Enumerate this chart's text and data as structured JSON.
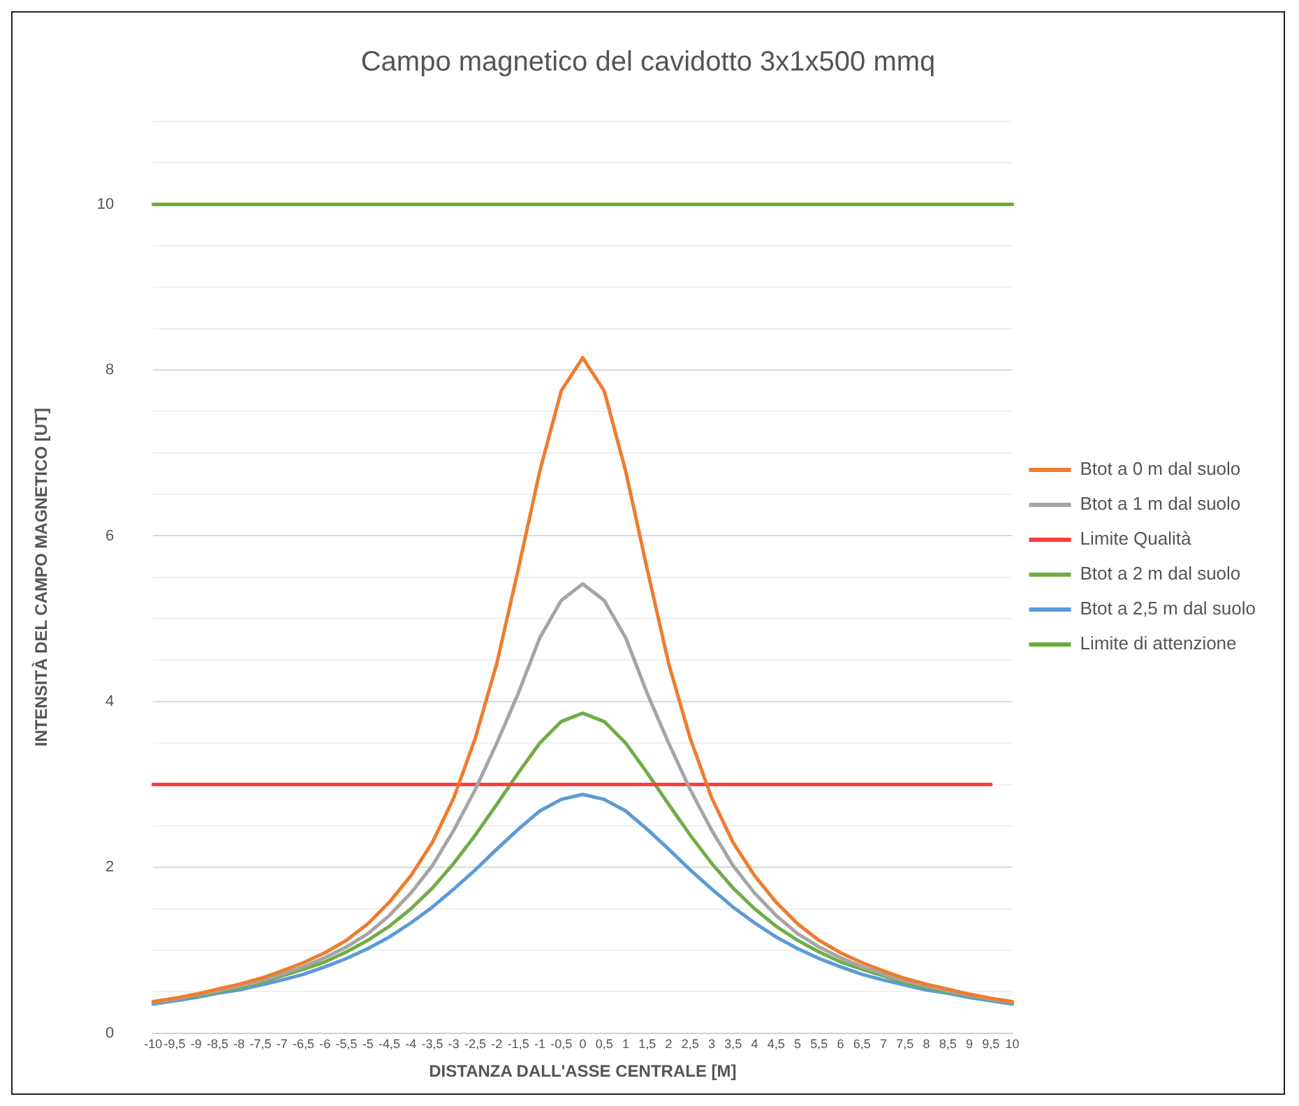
{
  "chart_data": {
    "type": "line",
    "title": "Campo magnetico del cavidotto 3x1x500 mmq",
    "xlabel": "DISTANZA DALL'ASSE CENTRALE [M]",
    "ylabel": "INTENSITÀ DEL CAMPO MAGNETICO [UT]",
    "categories": [
      "-10",
      "-9,5",
      "-9",
      "-8,5",
      "-8",
      "-7,5",
      "-7",
      "-6,5",
      "-6",
      "-5,5",
      "-5",
      "-4,5",
      "-4",
      "-3,5",
      "-3",
      "-2,5",
      "-2",
      "-1,5",
      "-1",
      "-0,5",
      "0",
      "0,5",
      "1",
      "1,5",
      "2",
      "2,5",
      "3",
      "3,5",
      "4",
      "4,5",
      "5",
      "5,5",
      "6",
      "6,5",
      "7",
      "7,5",
      "8",
      "8,5",
      "9",
      "9,5",
      "10"
    ],
    "series": [
      {
        "name": "Btot a 0 m dal suolo",
        "color": "#ed7d31",
        "values": [
          0.38,
          0.42,
          0.47,
          0.53,
          0.59,
          0.66,
          0.75,
          0.85,
          0.97,
          1.12,
          1.32,
          1.58,
          1.9,
          2.3,
          2.84,
          3.56,
          4.46,
          5.6,
          6.78,
          7.75,
          8.15,
          7.75,
          6.78,
          5.6,
          4.46,
          3.56,
          2.84,
          2.3,
          1.9,
          1.58,
          1.32,
          1.12,
          0.97,
          0.85,
          0.75,
          0.66,
          0.59,
          0.53,
          0.47,
          0.42,
          0.38
        ]
      },
      {
        "name": "Btot a 1 m dal suolo",
        "color": "#a5a5a5",
        "values": [
          0.37,
          0.41,
          0.46,
          0.51,
          0.57,
          0.63,
          0.71,
          0.8,
          0.91,
          1.04,
          1.2,
          1.42,
          1.69,
          2.02,
          2.45,
          2.94,
          3.5,
          4.1,
          4.77,
          5.22,
          5.42,
          5.22,
          4.77,
          4.1,
          3.5,
          2.94,
          2.45,
          2.02,
          1.69,
          1.42,
          1.2,
          1.04,
          0.91,
          0.8,
          0.71,
          0.63,
          0.57,
          0.51,
          0.46,
          0.41,
          0.37
        ]
      },
      {
        "name": "Limite Qualità",
        "color": "#ff3b3b",
        "values": [
          3,
          3,
          3,
          3,
          3,
          3,
          3,
          3,
          3,
          3,
          3,
          3,
          3,
          3,
          3,
          3,
          3,
          3,
          3,
          3,
          3,
          3,
          3,
          3,
          3,
          3,
          3,
          3,
          3,
          3,
          3,
          3,
          3,
          3,
          3,
          3,
          3,
          3,
          3,
          3,
          null
        ]
      },
      {
        "name": "Btot a 2 m dal suolo",
        "color": "#70ad47",
        "values": [
          0.37,
          0.41,
          0.45,
          0.5,
          0.55,
          0.61,
          0.69,
          0.77,
          0.86,
          0.98,
          1.12,
          1.29,
          1.5,
          1.75,
          2.05,
          2.39,
          2.76,
          3.14,
          3.5,
          3.76,
          3.86,
          3.76,
          3.5,
          3.14,
          2.76,
          2.39,
          2.05,
          1.75,
          1.5,
          1.29,
          1.12,
          0.98,
          0.86,
          0.77,
          0.69,
          0.61,
          0.55,
          0.5,
          0.45,
          0.41,
          0.37
        ]
      },
      {
        "name": "Btot a 2,5 m dal suolo",
        "color": "#5b9bd5",
        "values": [
          0.35,
          0.39,
          0.43,
          0.48,
          0.52,
          0.58,
          0.64,
          0.71,
          0.8,
          0.9,
          1.02,
          1.16,
          1.33,
          1.52,
          1.74,
          1.97,
          2.22,
          2.46,
          2.68,
          2.82,
          2.88,
          2.82,
          2.68,
          2.46,
          2.22,
          1.97,
          1.74,
          1.52,
          1.33,
          1.16,
          1.02,
          0.9,
          0.8,
          0.71,
          0.64,
          0.58,
          0.52,
          0.48,
          0.43,
          0.39,
          0.35
        ]
      },
      {
        "name": "Limite di attenzione",
        "color": "#6aaa3a",
        "values": [
          10,
          10,
          10,
          10,
          10,
          10,
          10,
          10,
          10,
          10,
          10,
          10,
          10,
          10,
          10,
          10,
          10,
          10,
          10,
          10,
          10,
          10,
          10,
          10,
          10,
          10,
          10,
          10,
          10,
          10,
          10,
          10,
          10,
          10,
          10,
          10,
          10,
          10,
          10,
          10,
          10
        ]
      }
    ],
    "ylim": [
      0,
      11
    ],
    "yticks": [
      0,
      {
        "value": 0.5,
        "label": null
      },
      2,
      {
        "value": 1,
        "label": null
      },
      {
        "value": 1.5,
        "label": null
      },
      {
        "value": 2.5,
        "label": null
      },
      {
        "value": 3,
        "label": null
      },
      {
        "value": 3.5,
        "label": null
      },
      4,
      {
        "value": 4.5,
        "label": null
      },
      {
        "value": 5,
        "label": null
      },
      {
        "value": 5.5,
        "label": null
      },
      6,
      {
        "value": 6.5,
        "label": null
      },
      {
        "value": 7,
        "label": null
      },
      {
        "value": 7.5,
        "label": null
      },
      8,
      {
        "value": 8.5,
        "label": null
      },
      {
        "value": 9,
        "label": null
      },
      {
        "value": 9.5,
        "label": null
      },
      10,
      {
        "value": 10.5,
        "label": null
      },
      {
        "value": 11,
        "label": null
      }
    ],
    "grid": "y",
    "legend": "right",
    "marker": "none",
    "line_style": "solid"
  }
}
